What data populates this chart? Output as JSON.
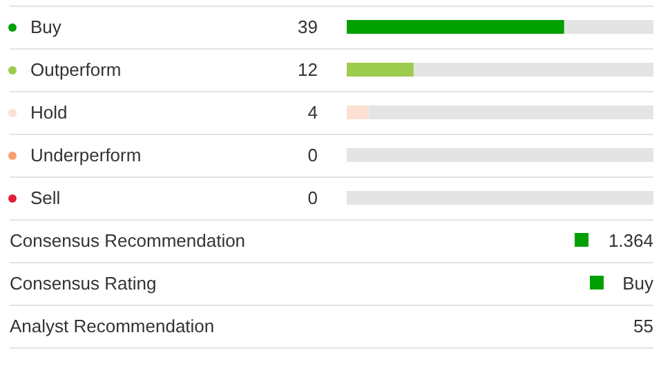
{
  "chart_data": {
    "type": "bar",
    "orientation": "horizontal",
    "stacked": true,
    "categories": [
      "Buy",
      "Outperform",
      "Hold",
      "Underperform",
      "Sell"
    ],
    "series": [
      {
        "colors": [
          "#00a000",
          "#9ccc4e",
          "#fde0d4",
          "#f8a070",
          "#e0203a"
        ],
        "values": [
          39,
          12,
          4,
          0,
          0
        ],
        "value_labels": [
          "39",
          "12",
          "4",
          "0",
          "0"
        ]
      },
      {
        "color": "#e4e4e4",
        "values": [
          16,
          43,
          51,
          55,
          55
        ]
      }
    ],
    "xlim": [
      0,
      55
    ],
    "tick_labels": "y",
    "grid": false,
    "annotations": [
      "Consensus Recommendation",
      "1.364",
      "Consensus Rating",
      "Buy",
      "Analyst Recommendation",
      "55"
    ]
  }
}
